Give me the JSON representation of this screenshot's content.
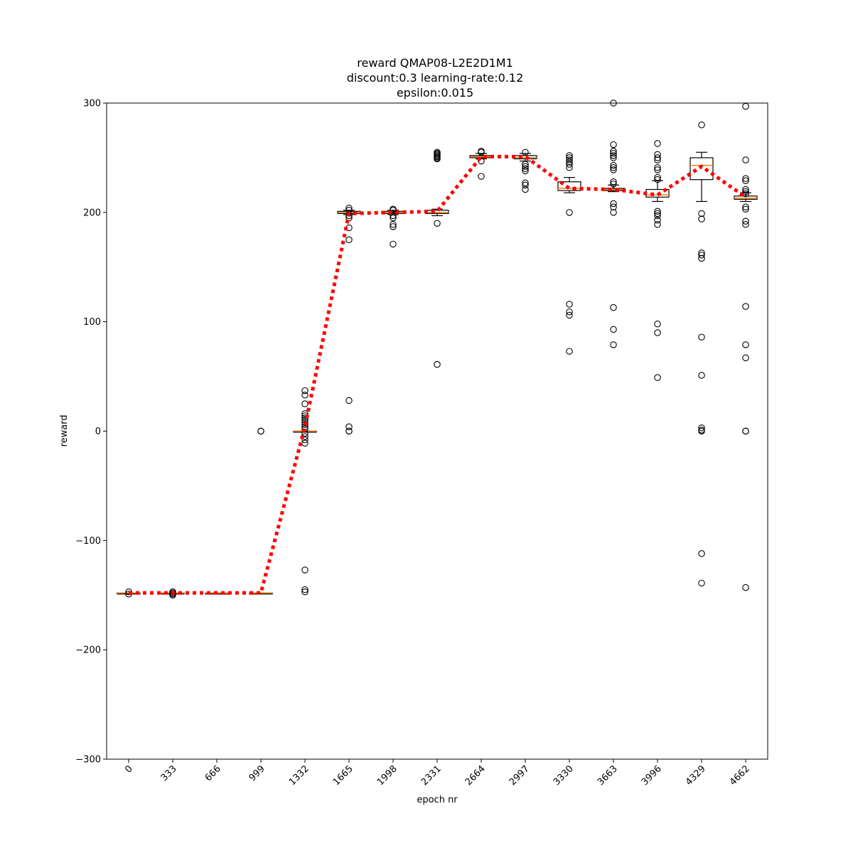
{
  "chart_data": {
    "type": "box",
    "title_lines": [
      "reward QMAP08-L2E2D1M1",
      "discount:0.3 learning-rate:0.12",
      "epsilon:0.015"
    ],
    "xlabel": "epoch nr",
    "ylabel": "reward",
    "ylim": [
      -300,
      300
    ],
    "yticks": [
      -300,
      -200,
      -100,
      0,
      100,
      200,
      300
    ],
    "yticklabels": [
      "−300",
      "−200",
      "−100",
      "0",
      "100",
      "200",
      "300"
    ],
    "categories": [
      "0",
      "333",
      "666",
      "999",
      "1332",
      "1665",
      "1998",
      "2331",
      "2664",
      "2997",
      "3330",
      "3663",
      "3996",
      "4329",
      "4662"
    ],
    "boxes": [
      {
        "q1": -148,
        "median": -148,
        "q3": -148,
        "whisker_low": -148,
        "whisker_high": -148,
        "outliers": [
          -147,
          -149
        ]
      },
      {
        "q1": -148,
        "median": -148,
        "q3": -148,
        "whisker_low": -148,
        "whisker_high": -148,
        "outliers": [
          -147,
          -148,
          -149,
          -150
        ]
      },
      {
        "q1": -148,
        "median": -148,
        "q3": -148,
        "whisker_low": -148,
        "whisker_high": -148,
        "outliers": []
      },
      {
        "q1": -148,
        "median": -148,
        "q3": -148,
        "whisker_low": -148,
        "whisker_high": -148,
        "outliers": [
          0,
          0
        ]
      },
      {
        "q1": 0,
        "median": 0,
        "q3": 0,
        "whisker_low": 0,
        "whisker_high": 0,
        "outliers": [
          37,
          33,
          25,
          16,
          14,
          12,
          10,
          8,
          6,
          4,
          2,
          -2,
          -5,
          -8,
          -11,
          -127,
          -145,
          -147
        ]
      },
      {
        "q1": 199,
        "median": 200,
        "q3": 201,
        "whisker_low": 198,
        "whisker_high": 202,
        "outliers": [
          204,
          202,
          197,
          195,
          186,
          175,
          28,
          4,
          0,
          0
        ]
      },
      {
        "q1": 199,
        "median": 200,
        "q3": 201,
        "whisker_low": 198,
        "whisker_high": 202,
        "outliers": [
          203,
          202,
          197,
          195,
          189,
          187,
          171
        ]
      },
      {
        "q1": 199,
        "median": 200,
        "q3": 202,
        "whisker_low": 197,
        "whisker_high": 203,
        "outliers": [
          255,
          254,
          253,
          252,
          251,
          250,
          249,
          190,
          61
        ]
      },
      {
        "q1": 250,
        "median": 251,
        "q3": 252,
        "whisker_low": 249,
        "whisker_high": 254,
        "outliers": [
          256,
          255,
          247,
          233
        ]
      },
      {
        "q1": 249,
        "median": 250,
        "q3": 252,
        "whisker_low": 247,
        "whisker_high": 254,
        "outliers": [
          255,
          244,
          242,
          240,
          238,
          227,
          225,
          221
        ]
      },
      {
        "q1": 220,
        "median": 222,
        "q3": 228,
        "whisker_low": 218,
        "whisker_high": 232,
        "outliers": [
          252,
          250,
          248,
          246,
          244,
          241,
          200,
          116,
          109,
          106,
          73
        ]
      },
      {
        "q1": 220,
        "median": 221,
        "q3": 222,
        "whisker_low": 219,
        "whisker_high": 225,
        "outliers": [
          300,
          262,
          256,
          254,
          252,
          250,
          243,
          241,
          239,
          228,
          226,
          208,
          205,
          200,
          113,
          93,
          79
        ]
      },
      {
        "q1": 214,
        "median": 216,
        "q3": 221,
        "whisker_low": 210,
        "whisker_high": 229,
        "outliers": [
          263,
          253,
          250,
          248,
          241,
          239,
          232,
          230,
          201,
          199,
          197,
          193,
          189,
          98,
          90,
          49
        ]
      },
      {
        "q1": 230,
        "median": 243,
        "q3": 250,
        "whisker_low": 210,
        "whisker_high": 255,
        "outliers": [
          280,
          199,
          194,
          163,
          161,
          158,
          86,
          51,
          3,
          1,
          0,
          -112,
          -139
        ]
      },
      {
        "q1": 212,
        "median": 213,
        "q3": 215,
        "whisker_low": 210,
        "whisker_high": 218,
        "outliers": [
          297,
          248,
          231,
          229,
          221,
          219,
          217,
          205,
          203,
          192,
          189,
          114,
          79,
          67,
          0,
          0,
          -143
        ]
      }
    ],
    "mean_line": {
      "values": [
        -148,
        -148,
        -148,
        -148,
        4,
        199,
        200,
        201,
        251,
        251,
        222,
        221,
        216,
        242,
        214
      ],
      "color": "#ff0000",
      "style": "dotted"
    },
    "colors": {
      "box": "#000000",
      "median": "#ff7f0e",
      "mean_line": "#ff0000",
      "outlier_edge": "#000000"
    },
    "grid": false
  }
}
